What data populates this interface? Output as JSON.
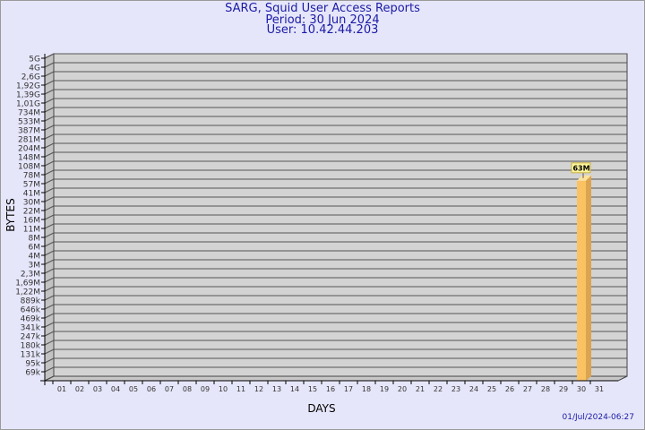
{
  "header": {
    "title": "SARG, Squid User Access Reports",
    "period": "Period: 30 Jun 2024",
    "user": "User: 10.42.44.203"
  },
  "footer": {
    "timestamp": "01/Jul/2024-06:27"
  },
  "colors": {
    "background": "#e6e6fa",
    "plot": "#d3d3d3",
    "bar": "#fbc263",
    "bar_side": "#dba450",
    "label_bg": "#fcf59a",
    "text": "#1a1aa6"
  },
  "chart_data": {
    "type": "bar",
    "xlabel": "DAYS",
    "ylabel": "BYTES",
    "y_scale": "log",
    "y_tick_labels": [
      "5G",
      "4G",
      "2,6G",
      "1,92G",
      "1,39G",
      "1,01G",
      "734M",
      "533M",
      "387M",
      "281M",
      "204M",
      "148M",
      "108M",
      "78M",
      "57M",
      "41M",
      "30M",
      "22M",
      "16M",
      "11M",
      "8M",
      "6M",
      "4M",
      "3M",
      "2,3M",
      "1,69M",
      "1,22M",
      "889k",
      "646k",
      "469k",
      "341k",
      "247k",
      "180k",
      "131k",
      "95k",
      "69k"
    ],
    "categories": [
      "01",
      "02",
      "03",
      "04",
      "05",
      "06",
      "07",
      "08",
      "09",
      "10",
      "11",
      "12",
      "13",
      "14",
      "15",
      "16",
      "17",
      "18",
      "19",
      "20",
      "21",
      "22",
      "23",
      "24",
      "25",
      "26",
      "27",
      "28",
      "29",
      "30",
      "31"
    ],
    "bars": [
      {
        "day": "30",
        "value": "63M",
        "label": "63M"
      }
    ],
    "grid": true
  }
}
